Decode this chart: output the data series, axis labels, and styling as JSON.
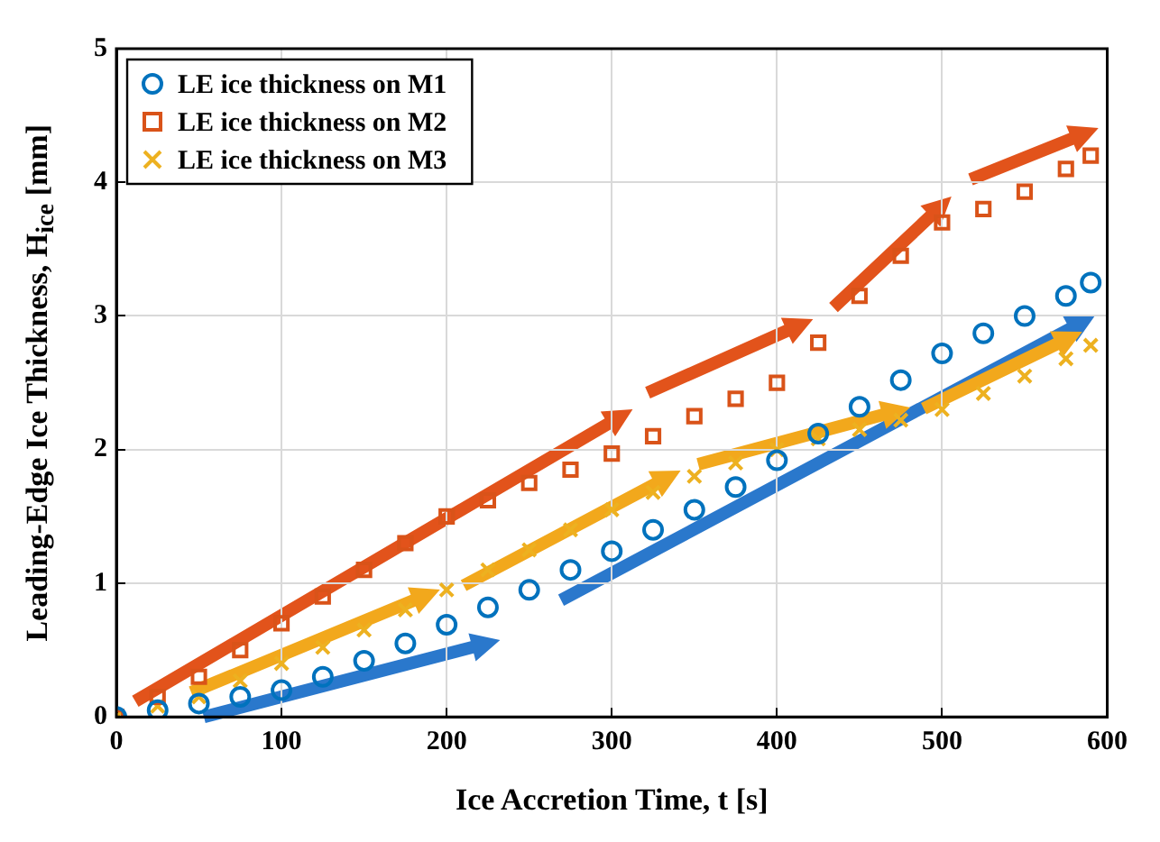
{
  "chart_data": {
    "type": "scatter",
    "xlabel": "Ice Accretion Time, t [s]",
    "ylabel": "Leading-Edge Ice Thickness, H$_{ice}$ [mm]",
    "x": [
      0,
      25,
      50,
      75,
      100,
      125,
      150,
      175,
      200,
      225,
      250,
      275,
      300,
      325,
      350,
      375,
      400,
      425,
      450,
      475,
      500,
      525,
      550,
      575,
      590
    ],
    "series": [
      {
        "name": "LE ice thickness on M1",
        "color": "#0072bd",
        "marker": "circle",
        "values": [
          0,
          0.05,
          0.1,
          0.15,
          0.2,
          0.3,
          0.42,
          0.55,
          0.69,
          0.82,
          0.95,
          1.1,
          1.24,
          1.4,
          1.55,
          1.72,
          1.92,
          2.12,
          2.32,
          2.52,
          2.72,
          2.87,
          3.0,
          3.15,
          3.25
        ]
      },
      {
        "name": "LE ice thickness on M2",
        "color": "#d95319",
        "marker": "square",
        "values": [
          0,
          0.15,
          0.3,
          0.5,
          0.7,
          0.9,
          1.1,
          1.3,
          1.5,
          1.62,
          1.75,
          1.85,
          1.97,
          2.1,
          2.25,
          2.38,
          2.5,
          2.8,
          3.15,
          3.45,
          3.7,
          3.8,
          3.93,
          4.1,
          4.2
        ]
      },
      {
        "name": "LE ice thickness on M3",
        "color": "#edb120",
        "marker": "cross",
        "values": [
          0,
          0.08,
          0.15,
          0.27,
          0.4,
          0.52,
          0.65,
          0.8,
          0.95,
          1.1,
          1.25,
          1.4,
          1.55,
          1.68,
          1.8,
          1.9,
          2.0,
          2.08,
          2.15,
          2.22,
          2.3,
          2.42,
          2.55,
          2.68,
          2.78
        ]
      }
    ],
    "xlim": [
      0,
      600
    ],
    "xticks": [
      0,
      100,
      200,
      300,
      400,
      500,
      600
    ],
    "ylim": [
      0,
      5
    ],
    "yticks": [
      0,
      1,
      2,
      3,
      4,
      5
    ],
    "grid": true,
    "legend": "top left"
  }
}
